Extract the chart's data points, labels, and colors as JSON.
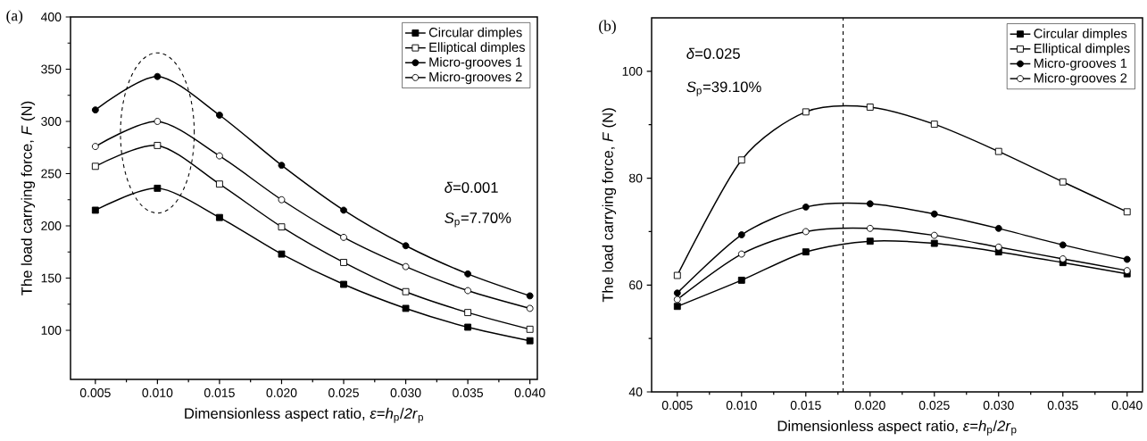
{
  "chart_data": [
    {
      "type": "line",
      "title": "(a)",
      "xlabel": "Dimensionless aspect ratio, *ε*=*h*$_{p}$/*2r*$_{p}$",
      "ylabel": "The load carrying force, *F* (N)",
      "annotations": [
        "*δ*=0.001",
        "*S*$_{p}$=7.70%"
      ],
      "x": [
        0.005,
        0.01,
        0.015,
        0.02,
        0.025,
        0.03,
        0.035,
        0.04
      ],
      "xlim": [
        0.003,
        0.0406
      ],
      "ylim": [
        53,
        400
      ],
      "xticks": [
        {
          "value": 0.005,
          "label": "0.005"
        },
        {
          "value": 0.01,
          "label": "0.010"
        },
        {
          "value": 0.015,
          "label": "0.015"
        },
        {
          "value": 0.02,
          "label": "0.020"
        },
        {
          "value": 0.025,
          "label": "0.025"
        },
        {
          "value": 0.03,
          "label": "0.030"
        },
        {
          "value": 0.035,
          "label": "0.035"
        },
        {
          "value": 0.04,
          "label": "0.040"
        }
      ],
      "yticks": [
        100,
        150,
        200,
        250,
        300,
        350,
        400
      ],
      "legend": "top right",
      "series": [
        {
          "name": "Circular dimples",
          "color": "#000000",
          "marker": "square",
          "values": [
            215,
            236,
            208,
            173,
            144,
            121,
            103,
            90
          ]
        },
        {
          "name": "Elliptical dimples",
          "color": "#000000",
          "marker": "square",
          "values": [
            257,
            277,
            240,
            199,
            165,
            137,
            117,
            101
          ]
        },
        {
          "name": "Micro-grooves 1",
          "color": "#000000",
          "marker": "circle",
          "values": [
            311,
            343,
            306,
            258,
            215,
            181,
            154,
            133
          ]
        },
        {
          "name": "Micro-grooves 2",
          "color": "#000000",
          "marker": "circle",
          "values": [
            276,
            300,
            267,
            225,
            189,
            161,
            138,
            121
          ]
        }
      ]
    },
    {
      "type": "line",
      "title": "(b)",
      "xlabel": "Dimensionless aspect ratio, *ε*=*h*$_{p}$/*2r*$_{p}$",
      "ylabel": "The load carrying force, *F* (N)",
      "annotations": [
        "*δ*=0.025",
        "*S*$_{p}$=39.10%"
      ],
      "x": [
        0.005,
        0.01,
        0.015,
        0.02,
        0.025,
        0.03,
        0.035,
        0.04
      ],
      "xlim": [
        0.003,
        0.0412
      ],
      "ylim": [
        40,
        110
      ],
      "xticks": [
        {
          "value": 0.005,
          "label": "0.005"
        },
        {
          "value": 0.01,
          "label": "0.010"
        },
        {
          "value": 0.015,
          "label": "0.015"
        },
        {
          "value": 0.02,
          "label": "0.020"
        },
        {
          "value": 0.025,
          "label": "0.025"
        },
        {
          "value": 0.03,
          "label": "0.030"
        },
        {
          "value": 0.035,
          "label": "0.035"
        },
        {
          "value": 0.04,
          "label": "0.040"
        }
      ],
      "yticks": [
        40,
        60,
        80,
        100
      ],
      "legend": "top right",
      "ref_lines": [
        {
          "axis": "x",
          "value": 0.0179,
          "label": null,
          "color": "#000000",
          "line_style": "dashed"
        }
      ],
      "series": [
        {
          "name": "Circular dimples",
          "color": "#000000",
          "marker": "square",
          "values": [
            56.0,
            60.9,
            66.2,
            68.2,
            67.8,
            66.2,
            64.2,
            62.1
          ]
        },
        {
          "name": "Elliptical dimples",
          "color": "#000000",
          "marker": "square",
          "values": [
            61.8,
            83.4,
            92.4,
            93.3,
            90.1,
            85.0,
            79.3,
            73.7
          ]
        },
        {
          "name": "Micro-grooves 1",
          "color": "#000000",
          "marker": "circle",
          "values": [
            58.5,
            69.4,
            74.6,
            75.2,
            73.3,
            70.6,
            67.5,
            64.8
          ]
        },
        {
          "name": "Micro-grooves 2",
          "color": "#000000",
          "marker": "circle",
          "values": [
            57.3,
            65.8,
            70.0,
            70.6,
            69.3,
            67.1,
            64.9,
            62.7
          ]
        }
      ]
    }
  ]
}
